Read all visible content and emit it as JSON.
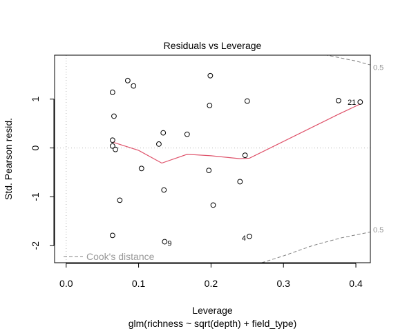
{
  "chart_data": {
    "type": "scatter",
    "title": "Residuals vs Leverage",
    "xlabel": "Leverage",
    "ylabel": "Std. Pearson resid.",
    "subtitle": "glm(richness ~ sqrt(depth) + field_type)",
    "xlim": [
      -0.016,
      0.42
    ],
    "ylim": [
      -2.35,
      1.9
    ],
    "x_ticks": [
      0.0,
      0.1,
      0.2,
      0.3,
      0.4
    ],
    "x_tick_labels": [
      "0.0",
      "0.1",
      "0.2",
      "0.3",
      "0.4"
    ],
    "y_ticks": [
      -2,
      -1,
      0,
      1
    ],
    "y_tick_labels": [
      "-2",
      "-1",
      "0",
      "1"
    ],
    "grid": false,
    "reference_lines": {
      "x": 0,
      "y": 0
    },
    "colors": {
      "smooth": "#df536b",
      "cook": "#808080",
      "reference": "#bebebe",
      "points": "#000000"
    },
    "points": [
      {
        "x": 0.064,
        "y": 1.14
      },
      {
        "x": 0.085,
        "y": 1.38
      },
      {
        "x": 0.093,
        "y": 1.27
      },
      {
        "x": 0.199,
        "y": 1.48
      },
      {
        "x": 0.066,
        "y": 0.65
      },
      {
        "x": 0.198,
        "y": 0.87
      },
      {
        "x": 0.25,
        "y": 0.96
      },
      {
        "x": 0.376,
        "y": 0.97
      },
      {
        "x": 0.406,
        "y": 0.94
      },
      {
        "x": 0.064,
        "y": 0.16
      },
      {
        "x": 0.064,
        "y": 0.04
      },
      {
        "x": 0.068,
        "y": -0.03
      },
      {
        "x": 0.128,
        "y": 0.08
      },
      {
        "x": 0.134,
        "y": 0.31
      },
      {
        "x": 0.167,
        "y": 0.28
      },
      {
        "x": 0.247,
        "y": -0.15
      },
      {
        "x": 0.104,
        "y": -0.42
      },
      {
        "x": 0.197,
        "y": -0.46
      },
      {
        "x": 0.24,
        "y": -0.69
      },
      {
        "x": 0.135,
        "y": -0.86
      },
      {
        "x": 0.074,
        "y": -1.07
      },
      {
        "x": 0.203,
        "y": -1.17
      },
      {
        "x": 0.064,
        "y": -1.79
      },
      {
        "x": 0.136,
        "y": -1.92
      },
      {
        "x": 0.253,
        "y": -1.81
      }
    ],
    "point_labels": [
      {
        "x": 0.406,
        "y": 0.94,
        "label": "21"
      },
      {
        "x": 0.136,
        "y": -1.92,
        "label": "9"
      },
      {
        "x": 0.253,
        "y": -1.81,
        "label": "4"
      }
    ],
    "smooth_line": [
      {
        "x": 0.064,
        "y": 0.12
      },
      {
        "x": 0.1,
        "y": -0.05
      },
      {
        "x": 0.132,
        "y": -0.31
      },
      {
        "x": 0.167,
        "y": -0.13
      },
      {
        "x": 0.2,
        "y": -0.16
      },
      {
        "x": 0.24,
        "y": -0.22
      },
      {
        "x": 0.253,
        "y": -0.21
      },
      {
        "x": 0.376,
        "y": 0.69
      },
      {
        "x": 0.406,
        "y": 0.9
      }
    ],
    "cook_contour_upper": [
      {
        "x": 0.32,
        "y": 2.05
      },
      {
        "x": 0.36,
        "y": 1.9
      },
      {
        "x": 0.4,
        "y": 1.78
      },
      {
        "x": 0.42,
        "y": 1.7
      }
    ],
    "cook_contour_lower": [
      {
        "x": 0.27,
        "y": -2.35
      },
      {
        "x": 0.3,
        "y": -2.21
      },
      {
        "x": 0.34,
        "y": -2.0
      },
      {
        "x": 0.38,
        "y": -1.84
      },
      {
        "x": 0.42,
        "y": -1.72
      }
    ],
    "cook_contour_labels": [
      {
        "y": 1.65,
        "label": "0.5"
      },
      {
        "y": -1.67,
        "label": "0.5"
      }
    ],
    "legend": {
      "label": "Cook's distance",
      "position": "bottom-left"
    }
  }
}
